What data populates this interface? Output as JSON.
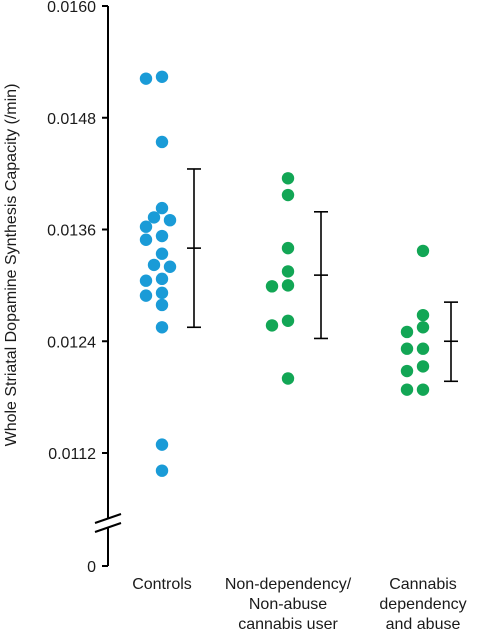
{
  "chart_data": {
    "type": "scatter",
    "ylabel": "Whole Striatal Dopamine Synthesis Capacity (/min)",
    "ylim": [
      0.0108,
      0.016
    ],
    "yticks": [
      "0.0160",
      "0.0148",
      "0.0136",
      "0.0124",
      "0.0112"
    ],
    "y_zero_label": "0",
    "axis_break": true,
    "grid": false,
    "categories": [
      {
        "lines": [
          "Controls"
        ]
      },
      {
        "lines": [
          "Non-dependency/",
          "Non-abuse",
          "cannabis user"
        ]
      },
      {
        "lines": [
          "Cannabis",
          "dependency",
          "and abuse"
        ]
      }
    ],
    "series": [
      {
        "category": 0,
        "color": "#1a9bd7",
        "values": [
          0.01524,
          0.01522,
          0.01454,
          0.01383,
          0.01373,
          0.01363,
          0.0137,
          0.01353,
          0.01349,
          0.01334,
          0.01322,
          0.0132,
          0.01307,
          0.01305,
          0.01292,
          0.01289,
          0.01279,
          0.01255,
          0.01129,
          0.01101
        ],
        "mean": 0.0134,
        "error": [
          0.01255,
          0.01425
        ]
      },
      {
        "category": 1,
        "color": "#12a655",
        "values": [
          0.01415,
          0.01397,
          0.0134,
          0.01315,
          0.013,
          0.01299,
          0.01262,
          0.01257,
          0.012
        ],
        "mean": 0.01311,
        "error": [
          0.01243,
          0.01379
        ]
      },
      {
        "category": 2,
        "color": "#12a655",
        "values": [
          0.01337,
          0.01268,
          0.01255,
          0.0125,
          0.01232,
          0.01232,
          0.01213,
          0.01208,
          0.01188,
          0.01188
        ],
        "mean": 0.0124,
        "error": [
          0.01197,
          0.01282
        ]
      }
    ]
  }
}
